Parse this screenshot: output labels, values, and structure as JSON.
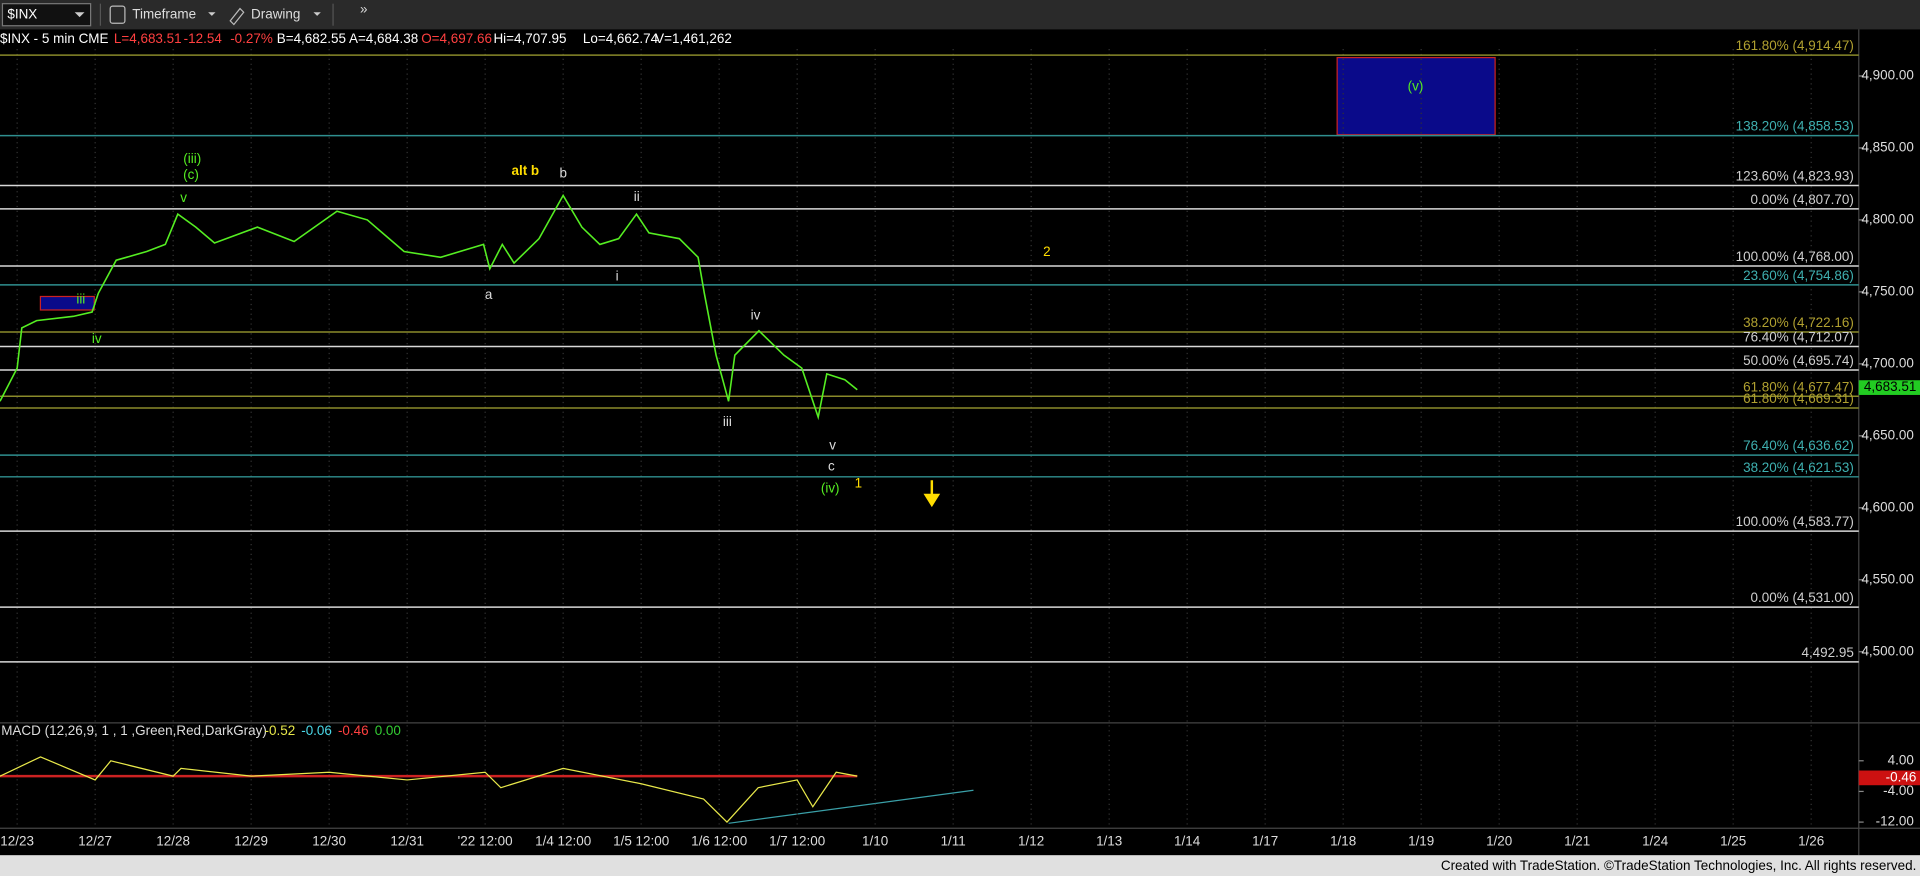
{
  "toolbar": {
    "symbol": "$INX",
    "timeframe": "Timeframe",
    "drawing": "Drawing",
    "more": "»"
  },
  "quote": [
    {
      "text": "$INX - 5 min  CME",
      "color": "#ffffff"
    },
    {
      "text": "L=4,683.51",
      "color": "#ff4040"
    },
    {
      "text": "-12.54",
      "color": "#ff4040"
    },
    {
      "text": "-0.27%",
      "color": "#ff4040"
    },
    {
      "text": "B=4,682.55",
      "color": "#ffffff"
    },
    {
      "text": "A=4,684.38",
      "color": "#ffffff"
    },
    {
      "text": "O=4,697.66",
      "color": "#ff4040"
    },
    {
      "text": "Hi=4,707.95",
      "color": "#ffffff"
    },
    {
      "text": "Lo=4,662.74",
      "color": "#ffffff"
    },
    {
      "text": "V=1,461,262",
      "color": "#ffffff"
    }
  ],
  "chart_data": {
    "type": "line",
    "categories": [
      "12/23",
      "12/27",
      "12/28",
      "12/29",
      "12/30",
      "12/31",
      "'22 12:00",
      "1/4 12:00",
      "1/5 12:00",
      "1/6 12:00",
      "1/7 12:00",
      "1/10",
      "1/11",
      "1/12",
      "1/13",
      "1/14",
      "1/17",
      "1/18",
      "1/19",
      "1/20",
      "1/21",
      "1/24",
      "1/25",
      "1/26"
    ],
    "x": [
      -0.22,
      0,
      0.06,
      0.25,
      0.72,
      0.96,
      1.04,
      1.27,
      1.66,
      1.9,
      2.06,
      2.29,
      2.53,
      3.08,
      3.55,
      4.1,
      4.49,
      4.96,
      5.43,
      5.98,
      6.06,
      6.22,
      6.37,
      6.69,
      7.0,
      7.24,
      7.47,
      7.71,
      7.94,
      8.1,
      8.49,
      8.73,
      8.81,
      8.96,
      9.12,
      9.2,
      9.51,
      9.83,
      10.06,
      10.27,
      10.38,
      10.61,
      10.77
    ],
    "values": [
      4674,
      4697,
      4725,
      4730,
      4733,
      4736,
      4749,
      4772,
      4778,
      4783,
      4804,
      4795,
      4784,
      4795,
      4785,
      4806,
      4800,
      4778,
      4774,
      4783,
      4766,
      4783,
      4770,
      4787,
      4817,
      4795,
      4783,
      4787,
      4804,
      4791,
      4787,
      4774,
      4749,
      4706,
      4674,
      4706,
      4723,
      4706,
      4697,
      4663,
      4693,
      4689,
      4682
    ],
    "color": "#55ee22",
    "xlim": [
      -0.22,
      23.61
    ],
    "ylim": [
      4450.6,
      4931.5
    ],
    "yticks": [
      {
        "value": 4500,
        "label": "4,500.00"
      },
      {
        "value": 4550,
        "label": "4,550.00"
      },
      {
        "value": 4600,
        "label": "4,600.00"
      },
      {
        "value": 4650,
        "label": "4,650.00"
      },
      {
        "value": 4700,
        "label": "4,700.00"
      },
      {
        "value": 4750,
        "label": "4,750.00"
      },
      {
        "value": 4800,
        "label": "4,800.00"
      },
      {
        "value": 4850,
        "label": "4,850.00"
      },
      {
        "value": 4900,
        "label": "4,900.00"
      }
    ],
    "last_price": {
      "value": 4683.51,
      "label": "4,683.51"
    },
    "levels": [
      {
        "label": "161.80% (4,914.47)",
        "value": 4914.47,
        "color": "#8a8a2a"
      },
      {
        "label": "138.20% (4,858.53)",
        "value": 4858.53,
        "color": "#2f8f8f"
      },
      {
        "label": "123.60% (4,823.93)",
        "value": 4823.93,
        "color": "#d8d8d8"
      },
      {
        "label": "0.00% (4,807.70)",
        "value": 4807.7,
        "color": "#d8d8d8"
      },
      {
        "label": "100.00% (4,768.00)",
        "value": 4768,
        "color": "#d8d8d8"
      },
      {
        "label": "23.60% (4,754.86)",
        "value": 4754.86,
        "color": "#2f8f8f"
      },
      {
        "label": "38.20% (4,722.16)",
        "value": 4722.16,
        "color": "#8a8a2a"
      },
      {
        "label": "76.40% (4,712.07)",
        "value": 4712.07,
        "color": "#d8d8d8"
      },
      {
        "label": "50.00% (4,695.74)",
        "value": 4695.74,
        "color": "#d8d8d8"
      },
      {
        "label": "61.80% (4,677.47)",
        "value": 4677.47,
        "color": "#8a8a2a"
      },
      {
        "label": "61.80% (4,669.31)",
        "value": 4669.31,
        "color": "#8a8a2a"
      },
      {
        "label": "76.40% (4,636.62)",
        "value": 4636.62,
        "color": "#2f8f8f"
      },
      {
        "label": "38.20% (4,621.53)",
        "value": 4621.53,
        "color": "#2f8f8f"
      },
      {
        "label": "100.00% (4,583.77)",
        "value": 4583.77,
        "color": "#d8d8d8"
      },
      {
        "label": "0.00% (4,531.00)",
        "value": 4531,
        "color": "#d8d8d8"
      },
      {
        "label": "4,492.95",
        "value": 4492.95,
        "color": "#d8d8d8"
      }
    ],
    "annotations": [
      "(iii)",
      "(c)",
      "v",
      "iii",
      "iv",
      "alt b",
      "b",
      "ii",
      "a",
      "i",
      "iv",
      "iii",
      "v",
      "c",
      "(iv)",
      "1",
      "2",
      "(v)"
    ],
    "macd": {
      "title": "MACD (12,26,9, 1 , 1 ,Green,Red,DarkGray)",
      "readings": [
        {
          "text": "-0.52",
          "color": "#e8e84a"
        },
        {
          "text": "-0.06",
          "color": "#4ad8e8"
        },
        {
          "text": "-0.46",
          "color": "#ff4040"
        },
        {
          "text": "0.00",
          "color": "#33cc33"
        }
      ],
      "x": [
        -0.22,
        0.3,
        1,
        1.2,
        2,
        2.1,
        3,
        4,
        5,
        6,
        6.2,
        7,
        8,
        8.8,
        9.1,
        9.5,
        10,
        10.2,
        10.5,
        10.77
      ],
      "values": [
        0,
        5,
        -1,
        4,
        0,
        2,
        0,
        1,
        -1,
        1,
        -3,
        2,
        -2,
        -6,
        -12,
        -3,
        -1,
        -8,
        1,
        0
      ],
      "color": "#e8e84a",
      "ylim": [
        -13.6,
        13.9
      ],
      "yticks": [
        {
          "value": 4,
          "label": "4.00"
        },
        {
          "value": -4,
          "label": "-4.00"
        },
        {
          "value": -12,
          "label": "-12.00"
        }
      ],
      "last": {
        "value": -0.46,
        "label": "-0.46"
      }
    }
  },
  "footer": "Created with TradeStation. ©TradeStation Technologies, Inc. All rights reserved."
}
